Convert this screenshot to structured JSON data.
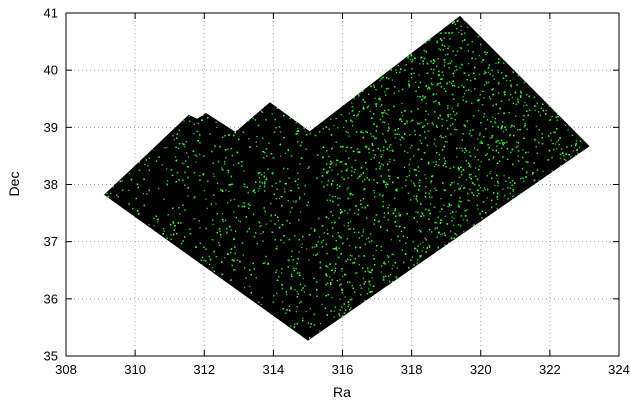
{
  "chart_data": {
    "type": "scatter",
    "title": "",
    "xlabel": "Ra",
    "ylabel": "Dec",
    "xlim": [
      308,
      324
    ],
    "ylim": [
      35,
      41
    ],
    "x_ticks": [
      "308",
      "310",
      "312",
      "314",
      "316",
      "318",
      "320",
      "322",
      "324"
    ],
    "y_ticks": [
      "35",
      "36",
      "37",
      "38",
      "39",
      "40",
      "41"
    ],
    "grid": true,
    "point_color": "#22cc22",
    "point_color_bright": "#33ff33",
    "background_color": "#000000",
    "density_note_ra": 315.5,
    "footprint_outline": [
      [
        309.1,
        37.82
      ],
      [
        311.55,
        39.22
      ],
      [
        311.8,
        39.15
      ],
      [
        312.05,
        39.25
      ],
      [
        312.9,
        38.92
      ],
      [
        313.9,
        39.44
      ],
      [
        315.05,
        38.93
      ],
      [
        319.4,
        40.95
      ],
      [
        323.15,
        38.67
      ],
      [
        315.0,
        35.27
      ]
    ]
  }
}
